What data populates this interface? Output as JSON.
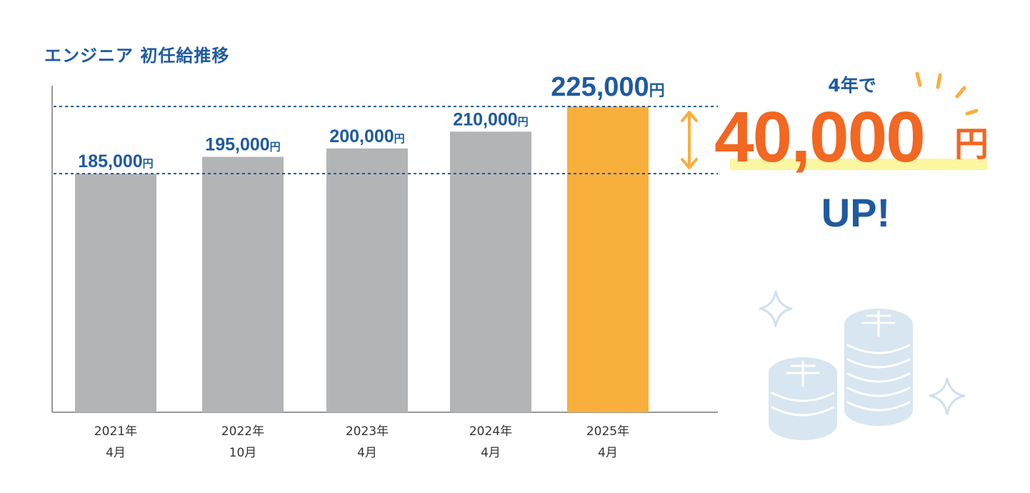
{
  "chart_data": {
    "type": "bar",
    "title": "エンジニア 初任給推移",
    "categories": [
      [
        "2021年",
        "4月"
      ],
      [
        "2022年",
        "10月"
      ],
      [
        "2023年",
        "4月"
      ],
      [
        "2024年",
        "4月"
      ],
      [
        "2025年",
        "4月"
      ]
    ],
    "values": [
      185000,
      195000,
      200000,
      210000,
      225000
    ],
    "data_labels": [
      "185,000",
      "195,000",
      "200,000",
      "210,000",
      "225,000"
    ],
    "unit": "円",
    "ylim": [
      0,
      225000
    ],
    "highlight_index": 4,
    "reference_lines": [
      185000,
      225000
    ],
    "grid": false,
    "colors": {
      "bar": "#b3b4b6",
      "highlight_bar": "#f9af3b",
      "label": "#1f5aa0",
      "arrow": "#f9af3b"
    }
  },
  "callout": {
    "prefix": "4年で",
    "amount": "40,000",
    "unit": "円",
    "suffix": "UP!",
    "colors": {
      "amount": "#f26722",
      "text": "#1f5aa0",
      "highlight": "#fbf6a0"
    }
  },
  "icons": [
    "coin-stack-icon",
    "sparkle-icon"
  ]
}
